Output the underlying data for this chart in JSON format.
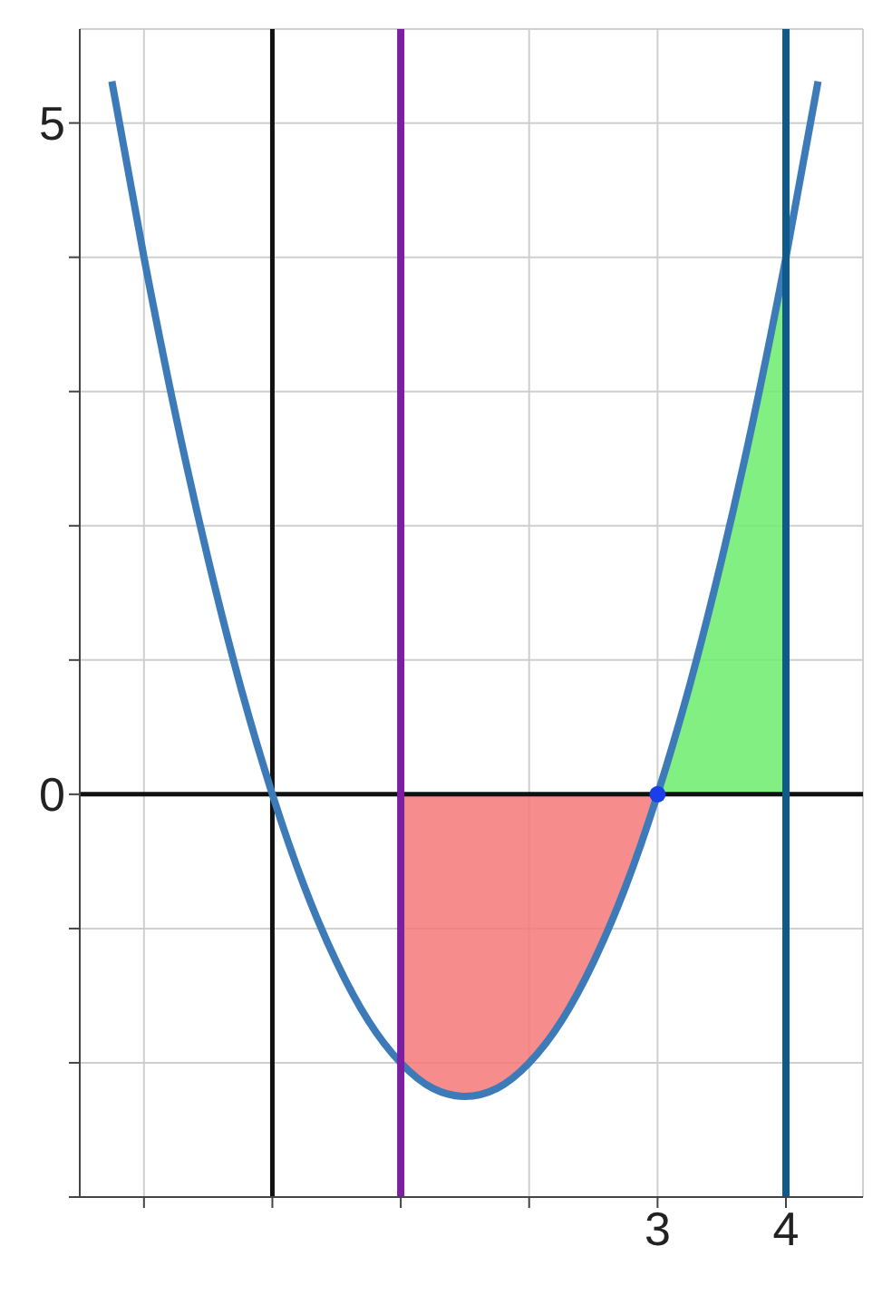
{
  "chart_data": {
    "type": "line",
    "xlim": [
      -1.5,
      4.6
    ],
    "ylim": [
      -3,
      5.7
    ],
    "xticks": [
      {
        "value": -1,
        "label": null
      },
      {
        "value": 0,
        "label": null
      },
      {
        "value": 1,
        "label": null
      },
      {
        "value": 2,
        "label": null
      },
      {
        "value": 3,
        "label": "3"
      },
      {
        "value": 4,
        "label": "4"
      }
    ],
    "yticks": [
      {
        "value": -3,
        "label": null
      },
      {
        "value": -2,
        "label": null
      },
      {
        "value": -1,
        "label": null
      },
      {
        "value": 0,
        "label": "0"
      },
      {
        "value": 1,
        "label": null
      },
      {
        "value": 2,
        "label": null
      },
      {
        "value": 3,
        "label": null
      },
      {
        "value": 4,
        "label": null
      },
      {
        "value": 5,
        "label": "5"
      }
    ],
    "grid": true,
    "line_style": "solid",
    "series": [
      {
        "type": "area",
        "color": "#f47878",
        "x": [
          1,
          1.25,
          1.5,
          1.75,
          2,
          2.25,
          2.5,
          2.75,
          3
        ],
        "values": [
          -2,
          -2.19,
          -2.25,
          -2.19,
          -2,
          -1.69,
          -1.25,
          -0.69,
          0
        ]
      },
      {
        "type": "area",
        "color": "#6cec6c",
        "x": [
          3,
          3.25,
          3.5,
          3.75,
          4
        ],
        "values": [
          0,
          0.81,
          1.75,
          2.81,
          4
        ]
      },
      {
        "marker": "none",
        "color": "#3d7ab8",
        "x": [
          -1.25,
          -1,
          -0.75,
          -0.5,
          -0.25,
          0,
          0.25,
          0.5,
          0.75,
          1,
          1.25,
          1.5,
          1.75,
          2,
          2.25,
          2.5,
          2.75,
          3,
          3.25,
          3.5,
          3.75,
          4,
          4.25
        ],
        "values": [
          5.31,
          4,
          2.81,
          1.75,
          0.81,
          0,
          -0.69,
          -1.25,
          -1.69,
          -2,
          -2.19,
          -2.25,
          -2.19,
          -2,
          -1.69,
          -1.25,
          -0.69,
          0,
          0.81,
          1.75,
          2.81,
          4,
          5.31
        ]
      },
      {
        "type": "scatter",
        "marker": "circle",
        "color": "#1a3ee8",
        "x": [
          3
        ],
        "values": [
          0
        ]
      }
    ],
    "ref_lines": [
      {
        "axis": "x",
        "value": 1,
        "color": "#7a1fa2"
      },
      {
        "axis": "x",
        "value": 4,
        "color": "#0e5a8a"
      }
    ]
  }
}
